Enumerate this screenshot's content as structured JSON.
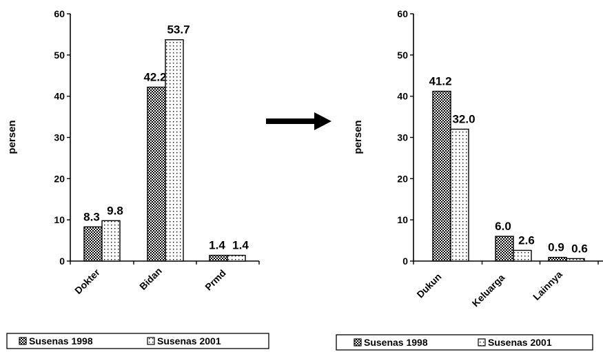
{
  "chart_data": [
    {
      "type": "bar",
      "ylabel": "persen",
      "ylim": [
        0,
        60
      ],
      "yticks": [
        0,
        10,
        20,
        30,
        40,
        50,
        60
      ],
      "categories": [
        "Dokter",
        "Bidan",
        "Prmd"
      ],
      "series": [
        {
          "name": "Susenas 1998",
          "values": [
            8.3,
            42.2,
            1.4
          ],
          "labels": [
            "8.3",
            "42.2",
            "1.4"
          ],
          "pattern": "dense-dots"
        },
        {
          "name": "Susenas 2001",
          "values": [
            9.8,
            53.7,
            1.4
          ],
          "labels": [
            "9.8",
            "53.7",
            "1.4"
          ],
          "pattern": "sparse-dots"
        }
      ],
      "legend_position": "bottom"
    },
    {
      "type": "bar",
      "ylabel": "persen",
      "ylim": [
        0,
        60
      ],
      "yticks": [
        0,
        10,
        20,
        30,
        40,
        50,
        60
      ],
      "categories": [
        "Dukun",
        "Keluarga",
        "Lainnya"
      ],
      "series": [
        {
          "name": "Susenas 1998",
          "values": [
            41.2,
            6.0,
            0.9
          ],
          "labels": [
            "41.2",
            "6.0",
            "0.9"
          ],
          "pattern": "dense-dots"
        },
        {
          "name": "Susenas 2001",
          "values": [
            32.0,
            2.6,
            0.6
          ],
          "labels": [
            "32.0",
            "2.6",
            "0.6"
          ],
          "pattern": "sparse-dots"
        }
      ],
      "legend_position": "bottom"
    }
  ],
  "arrow": {
    "direction": "right",
    "color": "#000000"
  }
}
